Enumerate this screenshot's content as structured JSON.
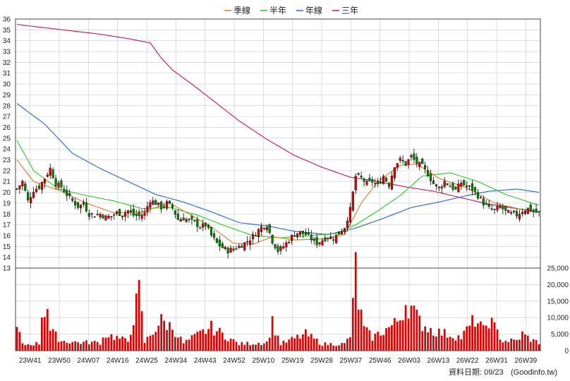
{
  "chart_data": {
    "type": "candlestick",
    "legend": [
      {
        "label": "季線",
        "color": "#e07820"
      },
      {
        "label": "半年",
        "color": "#22cc22"
      },
      {
        "label": "年線",
        "color": "#2266cc"
      },
      {
        "label": "三年",
        "color": "#cc1155"
      }
    ],
    "price_axis": {
      "min": 13,
      "max": 36,
      "ticks": [
        13,
        14,
        15,
        16,
        17,
        18,
        19,
        20,
        21,
        22,
        23,
        24,
        25,
        26,
        27,
        28,
        29,
        30,
        31,
        32,
        33,
        34,
        35,
        36
      ]
    },
    "volume_axis": {
      "min": 0,
      "max": 25000,
      "ticks": [
        0,
        5000,
        10000,
        15000,
        20000,
        25000
      ],
      "tick_labels": [
        "0",
        "5,000",
        "10,000",
        "15,000",
        "20,000",
        "25,000"
      ]
    },
    "x_labels": [
      "23W41",
      "23W50",
      "24W07",
      "24W16",
      "24W25",
      "24W34",
      "24W43",
      "24W52",
      "25W10",
      "25W19",
      "25W28",
      "25W37",
      "25W46",
      "26W03",
      "26W13",
      "26W22",
      "26W31",
      "26W39"
    ],
    "close_anchors": [
      [
        0,
        20.3
      ],
      [
        2,
        21.0
      ],
      [
        4,
        19.2
      ],
      [
        6,
        20.2
      ],
      [
        8,
        20.5
      ],
      [
        10,
        21.3
      ],
      [
        12,
        22.2
      ],
      [
        14,
        20.8
      ],
      [
        16,
        20.5
      ],
      [
        18,
        19.8
      ],
      [
        20,
        19.2
      ],
      [
        22,
        18.7
      ],
      [
        24,
        18.9
      ],
      [
        26,
        18.0
      ],
      [
        28,
        17.9
      ],
      [
        30,
        18.0
      ],
      [
        32,
        17.7
      ],
      [
        34,
        17.8
      ],
      [
        36,
        18.1
      ],
      [
        38,
        18.0
      ],
      [
        40,
        18.3
      ],
      [
        42,
        17.9
      ],
      [
        44,
        17.8
      ],
      [
        46,
        18.1
      ],
      [
        48,
        19.3
      ],
      [
        50,
        19.0
      ],
      [
        52,
        18.6
      ],
      [
        54,
        19.0
      ],
      [
        56,
        18.6
      ],
      [
        58,
        17.5
      ],
      [
        60,
        17.6
      ],
      [
        62,
        17.4
      ],
      [
        64,
        17.2
      ],
      [
        66,
        16.8
      ],
      [
        68,
        17.0
      ],
      [
        70,
        16.0
      ],
      [
        72,
        15.3
      ],
      [
        74,
        14.9
      ],
      [
        76,
        14.6
      ],
      [
        78,
        14.8
      ],
      [
        80,
        15.0
      ],
      [
        82,
        15.3
      ],
      [
        84,
        15.7
      ],
      [
        86,
        16.2
      ],
      [
        88,
        16.8
      ],
      [
        90,
        17.0
      ],
      [
        92,
        15.5
      ],
      [
        94,
        14.6
      ],
      [
        96,
        15.0
      ],
      [
        98,
        15.6
      ],
      [
        100,
        16.2
      ],
      [
        102,
        16.3
      ],
      [
        104,
        16.1
      ],
      [
        106,
        15.7
      ],
      [
        108,
        15.3
      ],
      [
        110,
        15.6
      ],
      [
        112,
        15.9
      ],
      [
        114,
        15.8
      ],
      [
        116,
        16.2
      ],
      [
        118,
        16.8
      ],
      [
        120,
        18.4
      ],
      [
        122,
        21.5
      ],
      [
        124,
        21.3
      ],
      [
        126,
        20.8
      ],
      [
        128,
        21.0
      ],
      [
        130,
        20.6
      ],
      [
        132,
        21.5
      ],
      [
        134,
        20.7
      ],
      [
        136,
        22.5
      ],
      [
        138,
        23.0
      ],
      [
        140,
        22.6
      ],
      [
        142,
        23.3
      ],
      [
        144,
        22.7
      ],
      [
        146,
        22.4
      ],
      [
        148,
        21.7
      ],
      [
        150,
        20.8
      ],
      [
        152,
        20.4
      ],
      [
        154,
        21.0
      ],
      [
        156,
        20.6
      ],
      [
        158,
        20.2
      ],
      [
        160,
        20.9
      ],
      [
        162,
        20.5
      ],
      [
        164,
        20.3
      ],
      [
        166,
        19.7
      ],
      [
        168,
        19.0
      ],
      [
        170,
        18.5
      ],
      [
        172,
        18.3
      ],
      [
        174,
        18.7
      ],
      [
        176,
        18.2
      ],
      [
        178,
        18.0
      ],
      [
        180,
        17.9
      ],
      [
        182,
        18.3
      ],
      [
        184,
        18.5
      ],
      [
        186,
        18.2
      ],
      [
        188,
        18.1
      ]
    ],
    "ma_quarter_anchors": [
      [
        0,
        23
      ],
      [
        6,
        21
      ],
      [
        15,
        20.2
      ],
      [
        25,
        19
      ],
      [
        35,
        18.1
      ],
      [
        45,
        18.2
      ],
      [
        55,
        19
      ],
      [
        62,
        18
      ],
      [
        70,
        16.8
      ],
      [
        78,
        15.3
      ],
      [
        85,
        15.2
      ],
      [
        92,
        15.9
      ],
      [
        100,
        15.6
      ],
      [
        112,
        15.7
      ],
      [
        118,
        16.1
      ],
      [
        124,
        19
      ],
      [
        130,
        21
      ],
      [
        138,
        22.5
      ],
      [
        144,
        22.6
      ],
      [
        152,
        21.3
      ],
      [
        162,
        20.4
      ],
      [
        172,
        19.0
      ],
      [
        182,
        18.4
      ],
      [
        188,
        18.2
      ]
    ],
    "ma_half_anchors": [
      [
        0,
        24.8
      ],
      [
        6,
        22
      ],
      [
        15,
        20.3
      ],
      [
        25,
        19.7
      ],
      [
        35,
        19.2
      ],
      [
        45,
        18.5
      ],
      [
        55,
        18.6
      ],
      [
        65,
        17.9
      ],
      [
        75,
        16.9
      ],
      [
        85,
        16.0
      ],
      [
        95,
        15.8
      ],
      [
        105,
        16.0
      ],
      [
        115,
        16.2
      ],
      [
        122,
        17.0
      ],
      [
        130,
        18.3
      ],
      [
        138,
        19.7
      ],
      [
        146,
        21.5
      ],
      [
        156,
        21.8
      ],
      [
        166,
        21.0
      ],
      [
        176,
        19.8
      ],
      [
        188,
        18.8
      ]
    ],
    "ma_year_anchors": [
      [
        0,
        28.2
      ],
      [
        10,
        26.3
      ],
      [
        20,
        23.6
      ],
      [
        30,
        22.2
      ],
      [
        40,
        21.0
      ],
      [
        50,
        19.8
      ],
      [
        60,
        19.1
      ],
      [
        70,
        18.2
      ],
      [
        80,
        17.2
      ],
      [
        90,
        16.9
      ],
      [
        100,
        16.4
      ],
      [
        112,
        16.1
      ],
      [
        122,
        16.7
      ],
      [
        132,
        17.6
      ],
      [
        142,
        18.6
      ],
      [
        152,
        19.1
      ],
      [
        162,
        19.7
      ],
      [
        170,
        20.1
      ],
      [
        180,
        20.3
      ],
      [
        188,
        20.0
      ]
    ],
    "ma_3y_anchors": [
      [
        0,
        35.5
      ],
      [
        10,
        35.2
      ],
      [
        20,
        34.9
      ],
      [
        30,
        34.6
      ],
      [
        40,
        34.2
      ],
      [
        48,
        33.8
      ],
      [
        52,
        32.4
      ],
      [
        56,
        31.3
      ],
      [
        64,
        29.8
      ],
      [
        72,
        28.2
      ],
      [
        80,
        26.6
      ],
      [
        90,
        24.9
      ],
      [
        100,
        23.4
      ],
      [
        110,
        22.3
      ],
      [
        120,
        21.4
      ],
      [
        130,
        21.0
      ],
      [
        140,
        20.5
      ],
      [
        150,
        20.1
      ],
      [
        160,
        19.5
      ],
      [
        170,
        18.9
      ],
      [
        180,
        18.5
      ],
      [
        188,
        18.2
      ]
    ],
    "volume_anchors": [
      [
        0,
        6500
      ],
      [
        1,
        5000
      ],
      [
        2,
        1800
      ],
      [
        8,
        2200
      ],
      [
        9,
        11000
      ],
      [
        11,
        14000
      ],
      [
        12,
        6000
      ],
      [
        16,
        3000
      ],
      [
        22,
        2500
      ],
      [
        30,
        2500
      ],
      [
        32,
        5000
      ],
      [
        40,
        2800
      ],
      [
        44,
        17500
      ],
      [
        46,
        2500
      ],
      [
        52,
        9000
      ],
      [
        56,
        7000
      ],
      [
        60,
        2300
      ],
      [
        70,
        7000
      ],
      [
        80,
        2000
      ],
      [
        90,
        2500
      ],
      [
        92,
        8500
      ],
      [
        95,
        2000
      ],
      [
        104,
        5000
      ],
      [
        110,
        2000
      ],
      [
        118,
        2000
      ],
      [
        120,
        4500
      ],
      [
        121,
        13000
      ],
      [
        122,
        26000
      ],
      [
        123,
        14500
      ],
      [
        125,
        6500
      ],
      [
        128,
        4000
      ],
      [
        132,
        6000
      ],
      [
        136,
        8000
      ],
      [
        138,
        10000
      ],
      [
        140,
        14500
      ],
      [
        142,
        13000
      ],
      [
        144,
        10000
      ],
      [
        146,
        8000
      ],
      [
        150,
        6000
      ],
      [
        155,
        5000
      ],
      [
        160,
        4000
      ],
      [
        165,
        9500
      ],
      [
        168,
        6000
      ],
      [
        170,
        9500
      ],
      [
        175,
        3000
      ],
      [
        180,
        3000
      ],
      [
        182,
        5000
      ],
      [
        186,
        3000
      ],
      [
        188,
        2500
      ]
    ]
  },
  "footer": {
    "date_label": "資料日期: 09/23",
    "source": "(Goodinfo.tw)"
  }
}
